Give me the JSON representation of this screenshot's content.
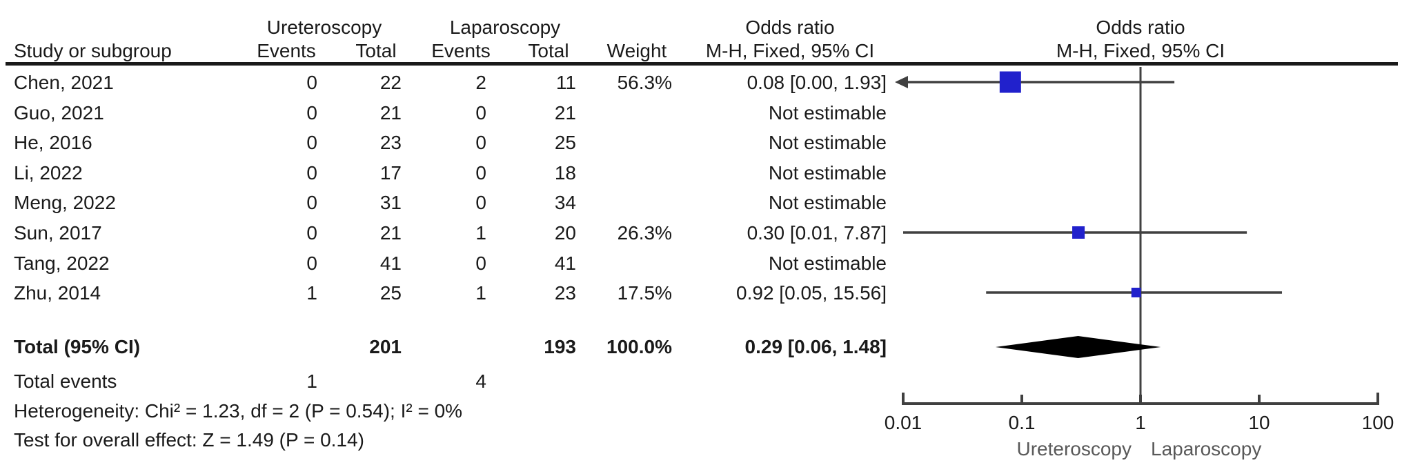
{
  "header": {
    "group1": "Ureteroscopy",
    "group2": "Laparoscopy",
    "study_col": "Study or subgroup",
    "events_col": "Events",
    "total_col": "Total",
    "weight_col": "Weight",
    "or_title": "Odds ratio",
    "or_subtitle": "M-H, Fixed, 95% CI"
  },
  "footer": {
    "total_events_label": "Total events",
    "total_events_group1": "1",
    "total_events_group2": "4",
    "heterogeneity": "Heterogeneity: Chi² = 1.23, df = 2 (P = 0.54); I² = 0%",
    "overall_effect": "Test for overall effect: Z = 1.49 (P = 0.14)"
  },
  "colors": {
    "text": "#1a1a1a",
    "square": "#2121cc",
    "diamond": "#000000",
    "ci_line": "#404040",
    "axis_line": "#404040",
    "favour_label": "#595959"
  },
  "chart_data": {
    "type": "forest",
    "effect_measure": "Odds ratio",
    "method": "M-H, Fixed, 95% CI",
    "x_axis": {
      "scale": "log10",
      "range": [
        0.01,
        100
      ],
      "ticks": [
        0.01,
        0.1,
        1,
        10,
        100
      ],
      "tick_labels": [
        "0.01",
        "0.1",
        "1",
        "10",
        "100"
      ]
    },
    "favours": {
      "left": "Ureteroscopy",
      "right": "Laparoscopy"
    },
    "studies": [
      {
        "name": "Chen, 2021",
        "events1": "0",
        "total1": "22",
        "events2": "2",
        "total2": "11",
        "weight": "56.3%",
        "weight_pct": 56.3,
        "or_text": "0.08 [0.00, 1.93]",
        "or": 0.08,
        "ci_low": 0.0,
        "ci_high": 1.93,
        "estimable": true
      },
      {
        "name": "Guo, 2021",
        "events1": "0",
        "total1": "21",
        "events2": "0",
        "total2": "21",
        "weight": "",
        "or_text": "Not estimable",
        "estimable": false
      },
      {
        "name": "He, 2016",
        "events1": "0",
        "total1": "23",
        "events2": "0",
        "total2": "25",
        "weight": "",
        "or_text": "Not estimable",
        "estimable": false
      },
      {
        "name": "Li, 2022",
        "events1": "0",
        "total1": "17",
        "events2": "0",
        "total2": "18",
        "weight": "",
        "or_text": "Not estimable",
        "estimable": false
      },
      {
        "name": "Meng, 2022",
        "events1": "0",
        "total1": "31",
        "events2": "0",
        "total2": "34",
        "weight": "",
        "or_text": "Not estimable",
        "estimable": false
      },
      {
        "name": "Sun, 2017",
        "events1": "0",
        "total1": "21",
        "events2": "1",
        "total2": "20",
        "weight": "26.3%",
        "weight_pct": 26.3,
        "or_text": "0.30 [0.01, 7.87]",
        "or": 0.3,
        "ci_low": 0.01,
        "ci_high": 7.87,
        "estimable": true
      },
      {
        "name": "Tang, 2022",
        "events1": "0",
        "total1": "41",
        "events2": "0",
        "total2": "41",
        "weight": "",
        "or_text": "Not estimable",
        "estimable": false
      },
      {
        "name": "Zhu, 2014",
        "events1": "1",
        "total1": "25",
        "events2": "1",
        "total2": "23",
        "weight": "17.5%",
        "weight_pct": 17.5,
        "or_text": "0.92 [0.05, 15.56]",
        "or": 0.92,
        "ci_low": 0.05,
        "ci_high": 15.56,
        "estimable": true
      }
    ],
    "total": {
      "label": "Total (95% CI)",
      "total1": "201",
      "total2": "193",
      "weight": "100.0%",
      "or_text": "0.29 [0.06, 1.48]",
      "or": 0.29,
      "ci_low": 0.06,
      "ci_high": 1.48
    }
  }
}
